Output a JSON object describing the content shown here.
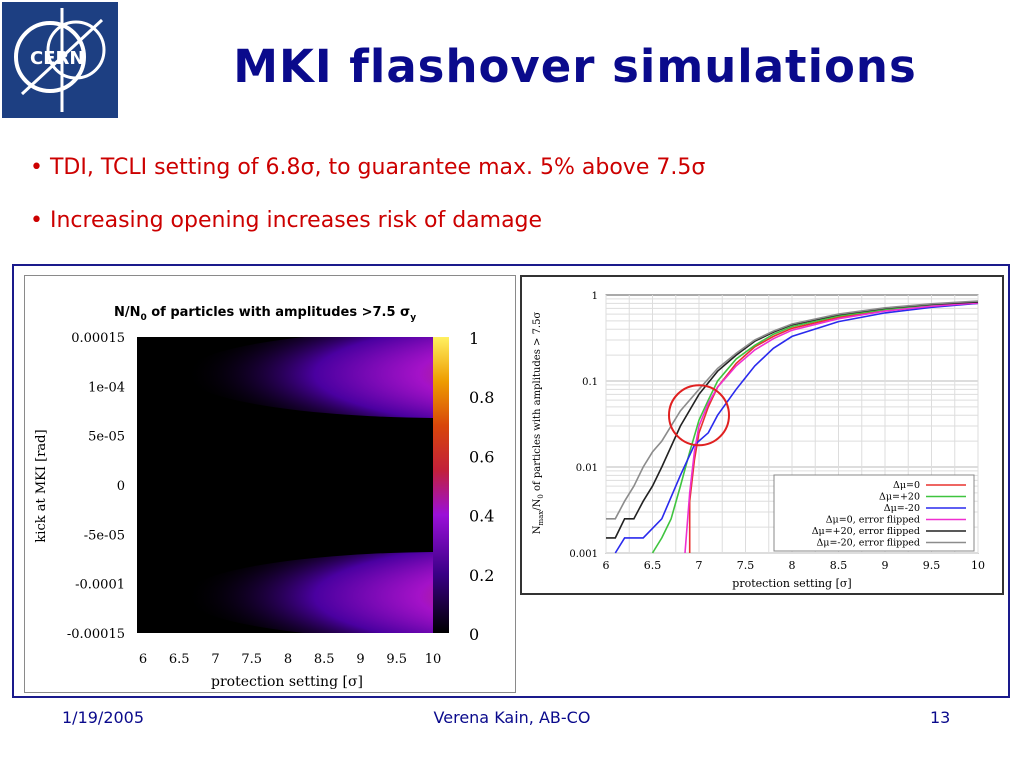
{
  "logo": {
    "text": "CERN"
  },
  "title": "MKI flashover simulations",
  "bullets": [
    {
      "text": "• TDI, TCLI setting of 6.8σ,  to guarantee max. 5% above 7.5σ"
    },
    {
      "text": "• Increasing opening increases risk of damage"
    }
  ],
  "heatmap": {
    "title": "N/N",
    "title_sub": "0",
    "title_rest": " of particles with amplitudes >7.5 σ",
    "title_sub2": "y",
    "ylabel": "kick at MKI [rad]",
    "xlabel": "protection setting [σ]",
    "yticks": [
      "0.00015",
      "1e-04",
      "5e-05",
      "0",
      "-5e-05",
      "-0.0001",
      "-0.00015"
    ],
    "xticks": [
      "6",
      "6.5",
      "7",
      "7.5",
      "8",
      "8.5",
      "9",
      "9.5",
      "10"
    ],
    "cbticks": [
      "1",
      "0.8",
      "0.6",
      "0.4",
      "0.2",
      "0"
    ]
  },
  "chart_data": [
    {
      "type": "heatmap",
      "title": "N/N0 of particles with amplitudes >7.5 σy",
      "xlabel": "protection setting [σ]",
      "ylabel": "kick at MKI [rad]",
      "xlim": [
        6,
        10
      ],
      "ylim": [
        -0.00015,
        0.00015
      ],
      "colorbar_range": [
        0,
        1
      ]
    },
    {
      "type": "line",
      "xlabel": "protection setting [σ]",
      "ylabel": "N_max/N_0 of particles with amplitudes > 7.5σ",
      "xlim": [
        6,
        10
      ],
      "ylim": [
        0.001,
        1
      ],
      "yscale": "log",
      "xticks": [
        "6",
        "6.5",
        "7",
        "7.5",
        "8",
        "8.5",
        "9",
        "9.5",
        "10"
      ],
      "yticks": [
        "1",
        "0.1",
        "0.01",
        "0.001"
      ],
      "legend": "bottom-right",
      "series": [
        {
          "name": "Δμ=0",
          "color": "#e8322e",
          "x": [
            6.9,
            6.9,
            6.95,
            7.0,
            7.1,
            7.2,
            7.4,
            7.6,
            7.8,
            8.0,
            8.5,
            9.0,
            9.5,
            10.0
          ],
          "y": [
            0.001,
            0.004,
            0.012,
            0.025,
            0.05,
            0.085,
            0.16,
            0.25,
            0.33,
            0.41,
            0.55,
            0.66,
            0.74,
            0.8
          ]
        },
        {
          "name": "Δμ=+20",
          "color": "#3fc43f",
          "x": [
            6.5,
            6.6,
            6.7,
            6.8,
            6.9,
            7.0,
            7.1,
            7.2,
            7.4,
            7.6,
            7.8,
            8.0,
            8.5,
            9.0,
            9.5,
            10.0
          ],
          "y": [
            0.001,
            0.0015,
            0.0025,
            0.006,
            0.015,
            0.035,
            0.06,
            0.1,
            0.18,
            0.26,
            0.35,
            0.43,
            0.57,
            0.68,
            0.76,
            0.82
          ]
        },
        {
          "name": "Δμ=-20",
          "color": "#2a2aee",
          "x": [
            6.1,
            6.2,
            6.4,
            6.6,
            6.8,
            6.95,
            7.1,
            7.2,
            7.4,
            7.6,
            7.8,
            8.0,
            8.5,
            9.0,
            9.5,
            10.0
          ],
          "y": [
            0.001,
            0.0015,
            0.0015,
            0.0025,
            0.008,
            0.018,
            0.025,
            0.04,
            0.08,
            0.15,
            0.24,
            0.33,
            0.49,
            0.62,
            0.72,
            0.8
          ]
        },
        {
          "name": "Δμ=0, error flipped",
          "color": "#ef2fd0",
          "x": [
            6.85,
            6.9,
            6.95,
            7.0,
            7.1,
            7.2,
            7.4,
            7.6,
            7.8,
            8.0,
            8.5,
            9.0,
            9.5,
            10.0
          ],
          "y": [
            0.001,
            0.005,
            0.015,
            0.03,
            0.055,
            0.085,
            0.15,
            0.23,
            0.31,
            0.39,
            0.53,
            0.65,
            0.74,
            0.81
          ]
        },
        {
          "name": "Δμ=+20, error flipped",
          "color": "#222222",
          "x": [
            6.0,
            6.1,
            6.2,
            6.3,
            6.4,
            6.5,
            6.6,
            6.8,
            7.0,
            7.2,
            7.4,
            7.6,
            7.8,
            8.0,
            8.5,
            9.0,
            9.5,
            10.0
          ],
          "y": [
            0.0015,
            0.0015,
            0.0025,
            0.0025,
            0.004,
            0.006,
            0.01,
            0.03,
            0.07,
            0.13,
            0.2,
            0.29,
            0.37,
            0.45,
            0.59,
            0.7,
            0.78,
            0.83
          ]
        },
        {
          "name": "Δμ=-20, error flipped",
          "color": "#8c8c8c",
          "x": [
            6.0,
            6.1,
            6.2,
            6.3,
            6.4,
            6.5,
            6.6,
            6.8,
            7.0,
            7.2,
            7.4,
            7.6,
            7.8,
            8.0,
            8.5,
            9.0,
            9.5,
            10.0
          ],
          "y": [
            0.0025,
            0.0025,
            0.004,
            0.006,
            0.01,
            0.015,
            0.02,
            0.045,
            0.08,
            0.14,
            0.21,
            0.3,
            0.38,
            0.46,
            0.6,
            0.71,
            0.79,
            0.85
          ]
        }
      ],
      "annotation": {
        "type": "circle",
        "x": 7.0,
        "y": 0.04,
        "color": "#e02020"
      }
    }
  ],
  "footer": {
    "date": "1/19/2005",
    "author": "Verena Kain, AB-CO",
    "page": "13"
  }
}
